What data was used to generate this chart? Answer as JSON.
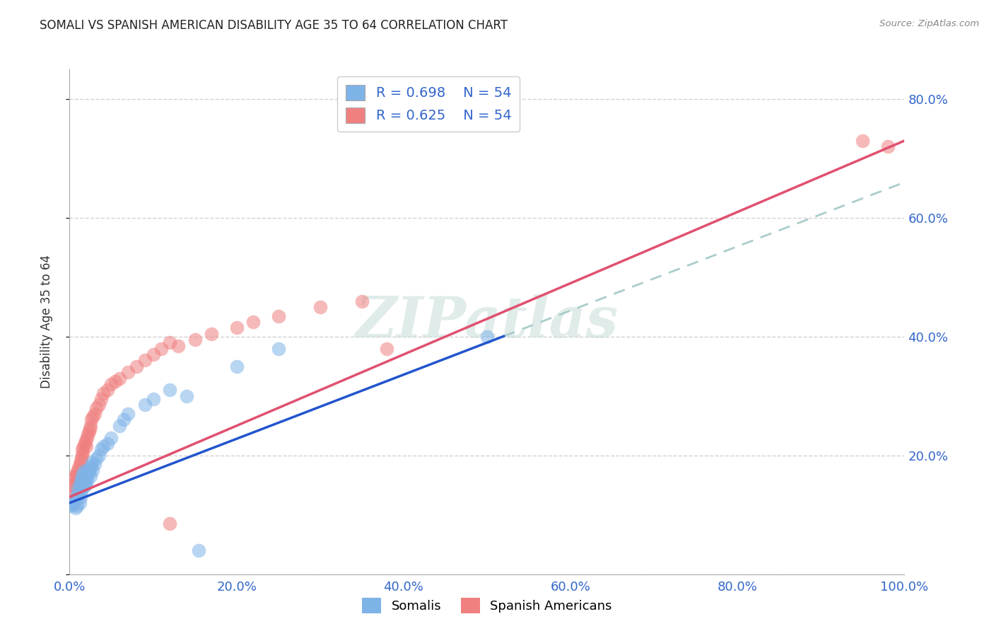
{
  "title": "SOMALI VS SPANISH AMERICAN DISABILITY AGE 35 TO 64 CORRELATION CHART",
  "source": "Source: ZipAtlas.com",
  "ylabel": "Disability Age 35 to 64",
  "xlim": [
    0.0,
    1.0
  ],
  "ylim": [
    0.0,
    0.85
  ],
  "xticks": [
    0.0,
    0.2,
    0.4,
    0.6,
    0.8,
    1.0
  ],
  "xticklabels": [
    "0.0%",
    "20.0%",
    "40.0%",
    "60.0%",
    "80.0%",
    "100.0%"
  ],
  "yticks": [
    0.0,
    0.2,
    0.4,
    0.6,
    0.8
  ],
  "yticklabels_right": [
    "",
    "20.0%",
    "40.0%",
    "60.0%",
    "80.0%"
  ],
  "somali_color": "#7EB3E8",
  "spanish_color": "#F08080",
  "trendline_somali_color": "#2255CC",
  "trendline_spanish_color": "#E05070",
  "trendline_dashed_color": "#AACCCC",
  "tick_color": "#3366CC",
  "background_color": "#ffffff",
  "grid_color": "#cccccc",
  "watermark_text": "ZIPatlas",
  "somali_x": [
    0.002,
    0.003,
    0.004,
    0.005,
    0.006,
    0.007,
    0.007,
    0.008,
    0.009,
    0.01,
    0.01,
    0.011,
    0.012,
    0.012,
    0.013,
    0.013,
    0.014,
    0.014,
    0.015,
    0.015,
    0.016,
    0.016,
    0.017,
    0.018,
    0.018,
    0.019,
    0.02,
    0.02,
    0.021,
    0.022,
    0.023,
    0.024,
    0.025,
    0.026,
    0.027,
    0.028,
    0.03,
    0.032,
    0.035,
    0.038,
    0.04,
    0.045,
    0.05,
    0.06,
    0.065,
    0.07,
    0.09,
    0.1,
    0.12,
    0.14,
    0.155,
    0.2,
    0.25,
    0.5
  ],
  "somali_y": [
    0.115,
    0.118,
    0.12,
    0.122,
    0.125,
    0.112,
    0.13,
    0.128,
    0.115,
    0.132,
    0.145,
    0.138,
    0.12,
    0.15,
    0.13,
    0.155,
    0.14,
    0.16,
    0.145,
    0.165,
    0.15,
    0.17,
    0.155,
    0.148,
    0.175,
    0.16,
    0.152,
    0.17,
    0.158,
    0.168,
    0.172,
    0.178,
    0.165,
    0.182,
    0.188,
    0.175,
    0.185,
    0.195,
    0.2,
    0.21,
    0.215,
    0.22,
    0.23,
    0.25,
    0.26,
    0.27,
    0.285,
    0.295,
    0.31,
    0.3,
    0.04,
    0.35,
    0.38,
    0.4
  ],
  "spanish_x": [
    0.002,
    0.003,
    0.004,
    0.005,
    0.006,
    0.007,
    0.008,
    0.009,
    0.01,
    0.011,
    0.012,
    0.013,
    0.014,
    0.015,
    0.015,
    0.016,
    0.017,
    0.018,
    0.019,
    0.02,
    0.021,
    0.022,
    0.023,
    0.024,
    0.025,
    0.026,
    0.028,
    0.03,
    0.032,
    0.035,
    0.038,
    0.04,
    0.045,
    0.05,
    0.055,
    0.06,
    0.07,
    0.08,
    0.09,
    0.1,
    0.11,
    0.12,
    0.13,
    0.15,
    0.17,
    0.2,
    0.22,
    0.25,
    0.3,
    0.35,
    0.38,
    0.12,
    0.95,
    0.98
  ],
  "spanish_y": [
    0.135,
    0.145,
    0.15,
    0.16,
    0.165,
    0.155,
    0.17,
    0.165,
    0.175,
    0.18,
    0.185,
    0.19,
    0.195,
    0.2,
    0.21,
    0.205,
    0.215,
    0.22,
    0.225,
    0.215,
    0.23,
    0.235,
    0.24,
    0.245,
    0.25,
    0.26,
    0.265,
    0.27,
    0.28,
    0.285,
    0.295,
    0.305,
    0.31,
    0.32,
    0.325,
    0.33,
    0.34,
    0.35,
    0.36,
    0.37,
    0.38,
    0.39,
    0.385,
    0.395,
    0.405,
    0.415,
    0.425,
    0.435,
    0.45,
    0.46,
    0.38,
    0.085,
    0.73,
    0.72
  ],
  "trendline_somali_solid_end": 0.52,
  "marker_size": 200
}
